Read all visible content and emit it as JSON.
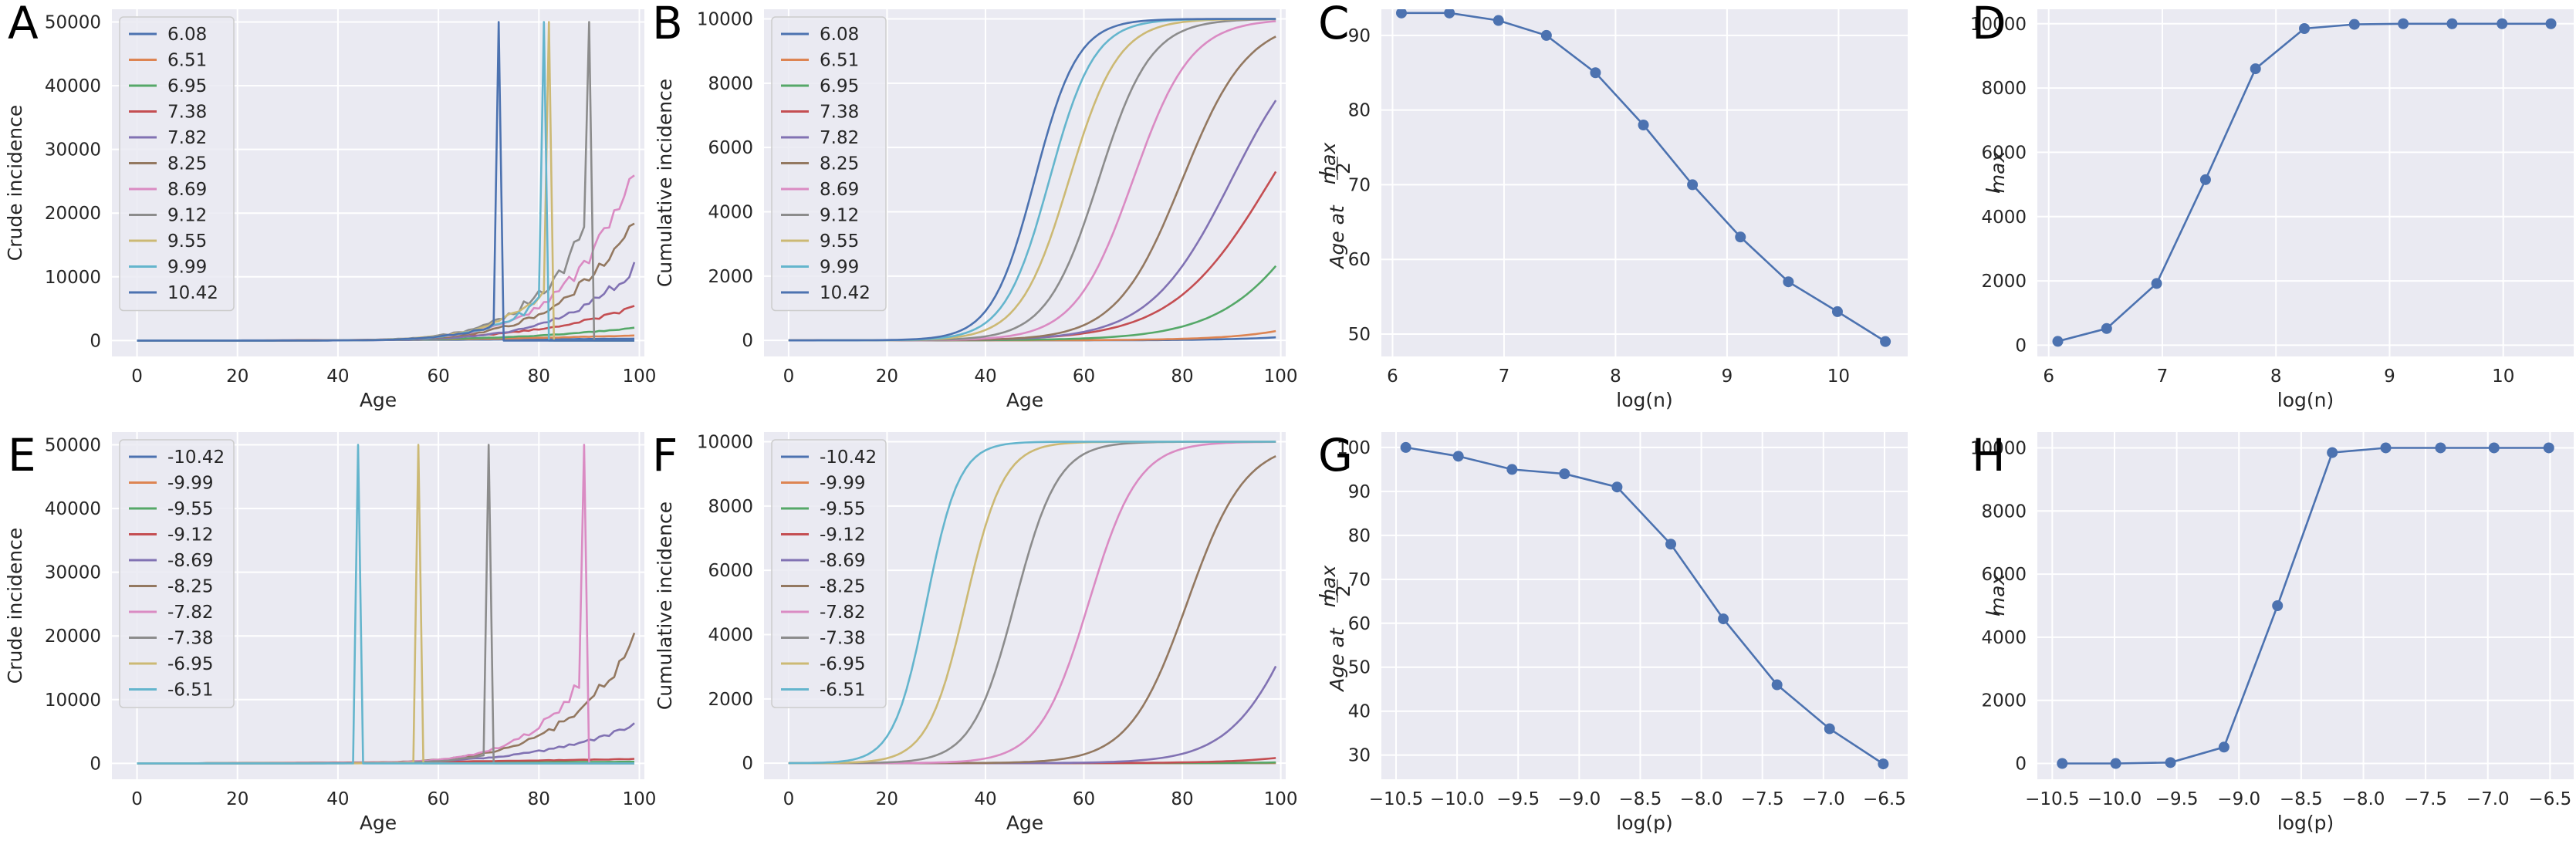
{
  "palette": [
    "#4c72b0",
    "#dd8452",
    "#55a868",
    "#c44e52",
    "#8172b3",
    "#937860",
    "#da8bc3",
    "#8c8c8c",
    "#ccb974",
    "#64b5cd",
    "#4c72b0"
  ],
  "chart_data": [
    {
      "panel": "A",
      "type": "line",
      "xlabel": "Age",
      "ylabel": "Crude incidence",
      "xlim": [
        -5,
        101
      ],
      "ylim": [
        -2500,
        52000
      ],
      "xticks": [
        0,
        20,
        40,
        60,
        80,
        100
      ],
      "yticks": [
        0,
        10000,
        20000,
        30000,
        40000,
        50000
      ],
      "xtick_labels": [
        "0",
        "20",
        "40",
        "60",
        "80",
        "100"
      ],
      "ytick_labels": [
        "0",
        "10000",
        "20000",
        "30000",
        "40000",
        "50000"
      ],
      "grid": true,
      "legend_position": "upper-left",
      "model": "crude",
      "series": [
        {
          "name": "6.08",
          "ld": 2.0,
          "imax": 300,
          "spike": null,
          "noise": 0.05
        },
        {
          "name": "6.51",
          "ld": 3.0,
          "imax": 800,
          "spike": null,
          "noise": 0.05
        },
        {
          "name": "6.95",
          "ld": 4.4,
          "imax": 2000,
          "spike": null,
          "noise": 0.05
        },
        {
          "name": "7.38",
          "ld": 5.0,
          "imax": 5200,
          "spike": null,
          "noise": 0.08
        },
        {
          "name": "7.82",
          "ld": 7.2,
          "imax": 11500,
          "spike": null,
          "noise": 0.08
        },
        {
          "name": "8.25",
          "ld": 7.4,
          "imax": 20000,
          "spike": null,
          "noise": 0.1
        },
        {
          "name": "8.69",
          "ld": 7.6,
          "imax": 27000,
          "spike": null,
          "noise": 0.08
        },
        {
          "name": "9.12",
          "ld": 7.8,
          "imax": 39000,
          "spike": 90,
          "noise": 0.12
        },
        {
          "name": "9.55",
          "ld": 8.0,
          "imax": 38000,
          "spike": 82,
          "noise": 0.12
        },
        {
          "name": "9.99",
          "ld": 8.2,
          "imax": 35000,
          "spike": 81,
          "noise": 0.12
        },
        {
          "name": "10.42",
          "ld": 8.4,
          "imax": 40000,
          "spike": 72,
          "noise": 0.15
        }
      ]
    },
    {
      "panel": "B",
      "type": "line",
      "xlabel": "Age",
      "ylabel": "Cumulative incidence",
      "xlim": [
        -5,
        101
      ],
      "ylim": [
        -500,
        10300
      ],
      "xticks": [
        0,
        20,
        40,
        60,
        80,
        100
      ],
      "yticks": [
        0,
        2000,
        4000,
        6000,
        8000,
        10000
      ],
      "xtick_labels": [
        "0",
        "20",
        "40",
        "60",
        "80",
        "100"
      ],
      "ytick_labels": [
        "0",
        "2000",
        "4000",
        "6000",
        "8000",
        "10000"
      ],
      "grid": true,
      "legend_position": "upper-left",
      "model": "logistic",
      "series": [
        {
          "name": "6.08",
          "mid": 148,
          "k": 0.095
        },
        {
          "name": "6.51",
          "mid": 136,
          "k": 0.095
        },
        {
          "name": "6.95",
          "mid": 111,
          "k": 0.1
        },
        {
          "name": "7.38",
          "mid": 98,
          "k": 0.1
        },
        {
          "name": "7.82",
          "mid": 90,
          "k": 0.12
        },
        {
          "name": "8.25",
          "mid": 80,
          "k": 0.15
        },
        {
          "name": "8.69",
          "mid": 70,
          "k": 0.17
        },
        {
          "name": "9.12",
          "mid": 63,
          "k": 0.19
        },
        {
          "name": "9.55",
          "mid": 57,
          "k": 0.2
        },
        {
          "name": "9.99",
          "mid": 53,
          "k": 0.22
        },
        {
          "name": "10.42",
          "mid": 50,
          "k": 0.23
        }
      ]
    },
    {
      "panel": "C",
      "type": "line",
      "xlabel": "log(n)",
      "ylabel_parts": {
        "pre": "Age at ",
        "num": "I",
        "num_sub": "max",
        "den": "2"
      },
      "xlim": [
        5.9,
        10.62
      ],
      "ylim": [
        47,
        93.5
      ],
      "xticks": [
        6,
        7,
        8,
        9,
        10
      ],
      "yticks": [
        50,
        60,
        70,
        80,
        90
      ],
      "xtick_labels": [
        "6",
        "7",
        "8",
        "9",
        "10"
      ],
      "ytick_labels": [
        "50",
        "60",
        "70",
        "80",
        "90"
      ],
      "grid": true,
      "markers": true,
      "x": [
        6.08,
        6.51,
        6.95,
        7.38,
        7.82,
        8.25,
        8.69,
        9.12,
        9.55,
        9.99,
        10.42
      ],
      "y": [
        93,
        93,
        92,
        90,
        85,
        78,
        70,
        63,
        57,
        53,
        49
      ]
    },
    {
      "panel": "D",
      "type": "line",
      "xlabel": "log(n)",
      "ylabel_parts": {
        "pre": "I",
        "sub": "max"
      },
      "xlim": [
        5.9,
        10.62
      ],
      "ylim": [
        -350,
        10450
      ],
      "xticks": [
        6,
        7,
        8,
        9,
        10
      ],
      "yticks": [
        0,
        2000,
        4000,
        6000,
        8000,
        10000
      ],
      "xtick_labels": [
        "6",
        "7",
        "8",
        "9",
        "10"
      ],
      "ytick_labels": [
        "0",
        "2000",
        "4000",
        "6000",
        "8000",
        "10000"
      ],
      "grid": true,
      "markers": true,
      "x": [
        6.08,
        6.51,
        6.95,
        7.38,
        7.82,
        8.25,
        8.69,
        9.12,
        9.55,
        9.99,
        10.42
      ],
      "y": [
        120,
        520,
        1920,
        5150,
        8600,
        9850,
        9980,
        10000,
        10000,
        10000,
        10000
      ]
    },
    {
      "panel": "E",
      "type": "line",
      "xlabel": "Age",
      "ylabel": "Crude incidence",
      "xlim": [
        -5,
        101
      ],
      "ylim": [
        -2500,
        52000
      ],
      "xticks": [
        0,
        20,
        40,
        60,
        80,
        100
      ],
      "yticks": [
        0,
        10000,
        20000,
        30000,
        40000,
        50000
      ],
      "xtick_labels": [
        "0",
        "20",
        "40",
        "60",
        "80",
        "100"
      ],
      "ytick_labels": [
        "0",
        "10000",
        "20000",
        "30000",
        "40000",
        "50000"
      ],
      "grid": true,
      "legend_position": "upper-left",
      "model": "crude",
      "series": [
        {
          "name": "-10.42",
          "ld": 1.0,
          "imax": 100,
          "spike": null,
          "noise": 0.05
        },
        {
          "name": "-9.99",
          "ld": 1.2,
          "imax": 150,
          "spike": null,
          "noise": 0.05
        },
        {
          "name": "-9.55",
          "ld": 1.5,
          "imax": 250,
          "spike": null,
          "noise": 0.05
        },
        {
          "name": "-9.12",
          "ld": 2.0,
          "imax": 700,
          "spike": null,
          "noise": 0.05
        },
        {
          "name": "-8.69",
          "ld": 5.4,
          "imax": 6000,
          "spike": null,
          "noise": 0.08
        },
        {
          "name": "-8.25",
          "ld": 6.9,
          "imax": 19000,
          "spike": null,
          "noise": 0.08
        },
        {
          "name": "-7.82",
          "ld": 8.0,
          "imax": 32000,
          "spike": 89,
          "noise": 0.08
        },
        {
          "name": "-7.38",
          "ld": 9.0,
          "imax": 33000,
          "spike": 70,
          "noise": 0.12
        },
        {
          "name": "-6.95",
          "ld": 10.0,
          "imax": 37000,
          "spike": 56,
          "noise": 0.1
        },
        {
          "name": "-6.51",
          "ld": 11.0,
          "imax": 38000,
          "spike": 44,
          "noise": 0.1
        }
      ]
    },
    {
      "panel": "F",
      "type": "line",
      "xlabel": "Age",
      "ylabel": "Cumulative incidence",
      "xlim": [
        -5,
        101
      ],
      "ylim": [
        -500,
        10300
      ],
      "xticks": [
        0,
        20,
        40,
        60,
        80,
        100
      ],
      "yticks": [
        0,
        2000,
        4000,
        6000,
        8000,
        10000
      ],
      "xtick_labels": [
        "0",
        "20",
        "40",
        "60",
        "80",
        "100"
      ],
      "ytick_labels": [
        "0",
        "2000",
        "4000",
        "6000",
        "8000",
        "10000"
      ],
      "grid": true,
      "legend_position": "upper-left",
      "model": "logistic",
      "series": [
        {
          "name": "-10.42",
          "mid": 200,
          "k": 0.08
        },
        {
          "name": "-9.99",
          "mid": 190,
          "k": 0.08
        },
        {
          "name": "-9.55",
          "mid": 175,
          "k": 0.08
        },
        {
          "name": "-9.12",
          "mid": 140,
          "k": 0.1
        },
        {
          "name": "-8.69",
          "mid": 105,
          "k": 0.14
        },
        {
          "name": "-8.25",
          "mid": 81,
          "k": 0.17
        },
        {
          "name": "-7.82",
          "mid": 61,
          "k": 0.2
        },
        {
          "name": "-7.38",
          "mid": 46,
          "k": 0.23
        },
        {
          "name": "-6.95",
          "mid": 36,
          "k": 0.26
        },
        {
          "name": "-6.51",
          "mid": 28,
          "k": 0.3
        }
      ]
    },
    {
      "panel": "G",
      "type": "line",
      "xlabel": "log(p)",
      "ylabel_parts": {
        "pre": "Age at ",
        "num": "I",
        "num_sub": "max",
        "den": "2"
      },
      "xlim": [
        -10.62,
        -6.31
      ],
      "ylim": [
        24.5,
        103.5
      ],
      "xticks": [
        -10.5,
        -10.0,
        -9.5,
        -9.0,
        -8.5,
        -8.0,
        -7.5,
        -7.0,
        -6.5
      ],
      "yticks": [
        30,
        40,
        50,
        60,
        70,
        80,
        90,
        100
      ],
      "xtick_labels": [
        "−10.5",
        "−10.0",
        "−9.5",
        "−9.0",
        "−8.5",
        "−8.0",
        "−7.5",
        "−7.0",
        "−6.5"
      ],
      "ytick_labels": [
        "30",
        "40",
        "50",
        "60",
        "70",
        "80",
        "90",
        "100"
      ],
      "grid": true,
      "markers": true,
      "x": [
        -10.42,
        -9.99,
        -9.55,
        -9.12,
        -8.69,
        -8.25,
        -7.82,
        -7.38,
        -6.95,
        -6.51
      ],
      "y": [
        100,
        98,
        95,
        94,
        91,
        78,
        61,
        46,
        36,
        28
      ]
    },
    {
      "panel": "H",
      "type": "line",
      "xlabel": "log(p)",
      "ylabel_parts": {
        "pre": "I",
        "sub": "max"
      },
      "xlim": [
        -10.62,
        -6.31
      ],
      "ylim": [
        -500,
        10500
      ],
      "xticks": [
        -10.5,
        -10.0,
        -9.5,
        -9.0,
        -8.5,
        -8.0,
        -7.5,
        -7.0,
        -6.5
      ],
      "yticks": [
        0,
        2000,
        4000,
        6000,
        8000,
        10000
      ],
      "xtick_labels": [
        "−10.5",
        "−10.0",
        "−9.5",
        "−9.0",
        "−8.5",
        "−8.0",
        "−7.5",
        "−7.0",
        "−6.5"
      ],
      "ytick_labels": [
        "0",
        "2000",
        "4000",
        "6000",
        "8000",
        "10000"
      ],
      "grid": true,
      "markers": true,
      "x": [
        -10.42,
        -9.99,
        -9.55,
        -9.12,
        -8.69,
        -8.25,
        -7.82,
        -7.38,
        -6.95,
        -6.51
      ],
      "y": [
        0,
        0,
        30,
        520,
        5000,
        9850,
        10000,
        10000,
        10000,
        10000
      ]
    }
  ]
}
